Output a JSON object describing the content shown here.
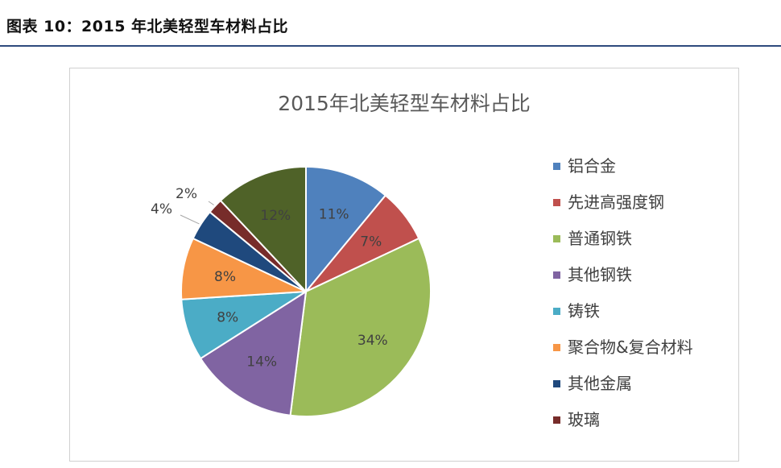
{
  "figure": {
    "caption": "图表 10：2015 年北美轻型车材料占比"
  },
  "chart_data": {
    "type": "pie",
    "title": "2015年北美轻型车材料占比",
    "legend_position": "right",
    "slices": [
      {
        "name": "铝合金",
        "value": 11,
        "label": "11%",
        "color": "#4f81bd"
      },
      {
        "name": "先进高强度钢",
        "value": 7,
        "label": "7%",
        "color": "#c0504d"
      },
      {
        "name": "普通钢铁",
        "value": 34,
        "label": "34%",
        "color": "#9bbb59"
      },
      {
        "name": "其他钢铁",
        "value": 14,
        "label": "14%",
        "color": "#8064a2"
      },
      {
        "name": "铸铁",
        "value": 8,
        "label": "8%",
        "color": "#4bacc6"
      },
      {
        "name": "聚合物&复合材料",
        "value": 8,
        "label": "8%",
        "color": "#f79646"
      },
      {
        "name": "其他金属",
        "value": 4,
        "label": "4%",
        "color": "#1f497d"
      },
      {
        "name": "玻璃",
        "value": 2,
        "label": "2%",
        "color": "#772c2a"
      },
      {
        "name": "",
        "value": 12,
        "label": "12%",
        "color": "#4f6228"
      }
    ]
  }
}
